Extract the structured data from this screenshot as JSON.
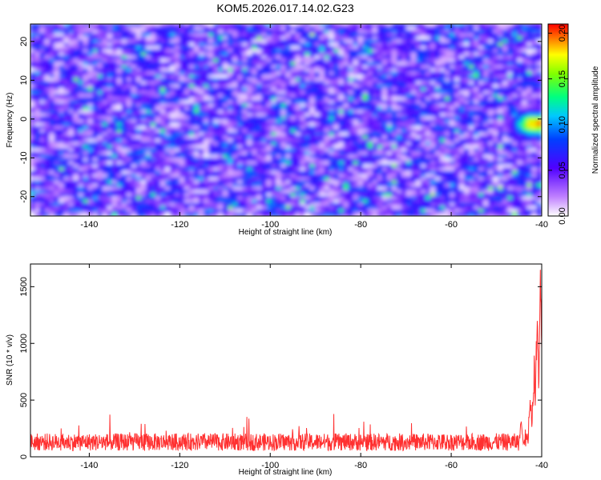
{
  "title": "KOM5.2026.017.14.02.G23",
  "chart_data": [
    {
      "type": "heatmap",
      "xlabel": "Height of straight line (km)",
      "ylabel": "Frequency (Hz)",
      "xlim": [
        -153,
        -40
      ],
      "ylim": [
        -25,
        24.5
      ],
      "xticks": [
        -140,
        -120,
        -100,
        -80,
        -60,
        -40
      ],
      "xtick_labels": [
        "-140",
        "-120",
        "-100",
        "-80",
        "-60",
        "-40"
      ],
      "yticks": [
        -20,
        -10,
        0,
        10,
        20
      ],
      "ytick_labels": [
        "-20",
        "-10",
        "0",
        "10",
        "20"
      ],
      "colorbar": {
        "label": "Normalized spectral amplitude",
        "range": [
          0,
          0.21
        ],
        "ticks": [
          0,
          0.05,
          0.1,
          0.15,
          0.2
        ],
        "tick_labels": [
          "0.00",
          "0.05",
          "0.10",
          "0.15",
          "0.20"
        ]
      },
      "hotspot": {
        "x": -41.5,
        "y": -1.5,
        "amplitude": 0.21
      },
      "background_amplitude_range": [
        0.0,
        0.09
      ]
    },
    {
      "type": "line",
      "xlabel": "Height of straight line (km)",
      "ylabel": "SNR (10 * v/v)",
      "xlim": [
        -153,
        -40
      ],
      "ylim": [
        0,
        1700
      ],
      "xticks": [
        -140,
        -120,
        -100,
        -80,
        -60,
        -40
      ],
      "xtick_labels": [
        "-140",
        "-120",
        "-100",
        "-80",
        "-60",
        "-40"
      ],
      "yticks": [
        0,
        500,
        1000,
        1500
      ],
      "ytick_labels": [
        "0",
        "500",
        "1000",
        "1500"
      ],
      "line_color": "#ff3030",
      "series_profile": {
        "baseline_mean": 130,
        "baseline_spread": 110,
        "rise_start_x": -45,
        "peaks": [
          {
            "x": -44.5,
            "y": 430
          },
          {
            "x": -42.5,
            "y": 680
          },
          {
            "x": -41.7,
            "y": 950
          },
          {
            "x": -41.0,
            "y": 1260
          },
          {
            "x": -40.3,
            "y": 1680
          }
        ]
      }
    }
  ]
}
